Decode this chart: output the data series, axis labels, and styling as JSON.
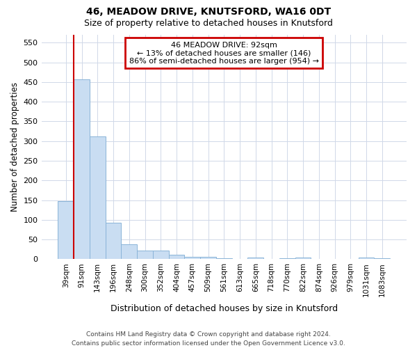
{
  "title1": "46, MEADOW DRIVE, KNUTSFORD, WA16 0DT",
  "title2": "Size of property relative to detached houses in Knutsford",
  "xlabel": "Distribution of detached houses by size in Knutsford",
  "ylabel": "Number of detached properties",
  "footer1": "Contains HM Land Registry data © Crown copyright and database right 2024.",
  "footer2": "Contains public sector information licensed under the Open Government Licence v3.0.",
  "bin_labels": [
    "39sqm",
    "91sqm",
    "143sqm",
    "196sqm",
    "248sqm",
    "300sqm",
    "352sqm",
    "404sqm",
    "457sqm",
    "509sqm",
    "561sqm",
    "613sqm",
    "665sqm",
    "718sqm",
    "770sqm",
    "822sqm",
    "874sqm",
    "926sqm",
    "979sqm",
    "1031sqm",
    "1083sqm"
  ],
  "bar_values": [
    148,
    456,
    311,
    93,
    38,
    22,
    22,
    12,
    6,
    6,
    2,
    0,
    4,
    0,
    2,
    4,
    0,
    0,
    0,
    4,
    2
  ],
  "bar_color": "#c9ddf2",
  "bar_edge_color": "#8ab4d8",
  "red_line_index": 1,
  "annotation_line1": "46 MEADOW DRIVE: 92sqm",
  "annotation_line2": "← 13% of detached houses are smaller (146)",
  "annotation_line3": "86% of semi-detached houses are larger (954) →",
  "annotation_box_color": "white",
  "annotation_box_edge_color": "#cc0000",
  "ylim": [
    0,
    570
  ],
  "yticks": [
    0,
    50,
    100,
    150,
    200,
    250,
    300,
    350,
    400,
    450,
    500,
    550
  ],
  "grid_color": "#d0d8e8",
  "background_color": "white",
  "title1_fontsize": 10,
  "title2_fontsize": 9,
  "ylabel_fontsize": 8.5,
  "xlabel_fontsize": 9,
  "tick_fontsize": 7.5,
  "annotation_fontsize": 8,
  "footer_fontsize": 6.5
}
